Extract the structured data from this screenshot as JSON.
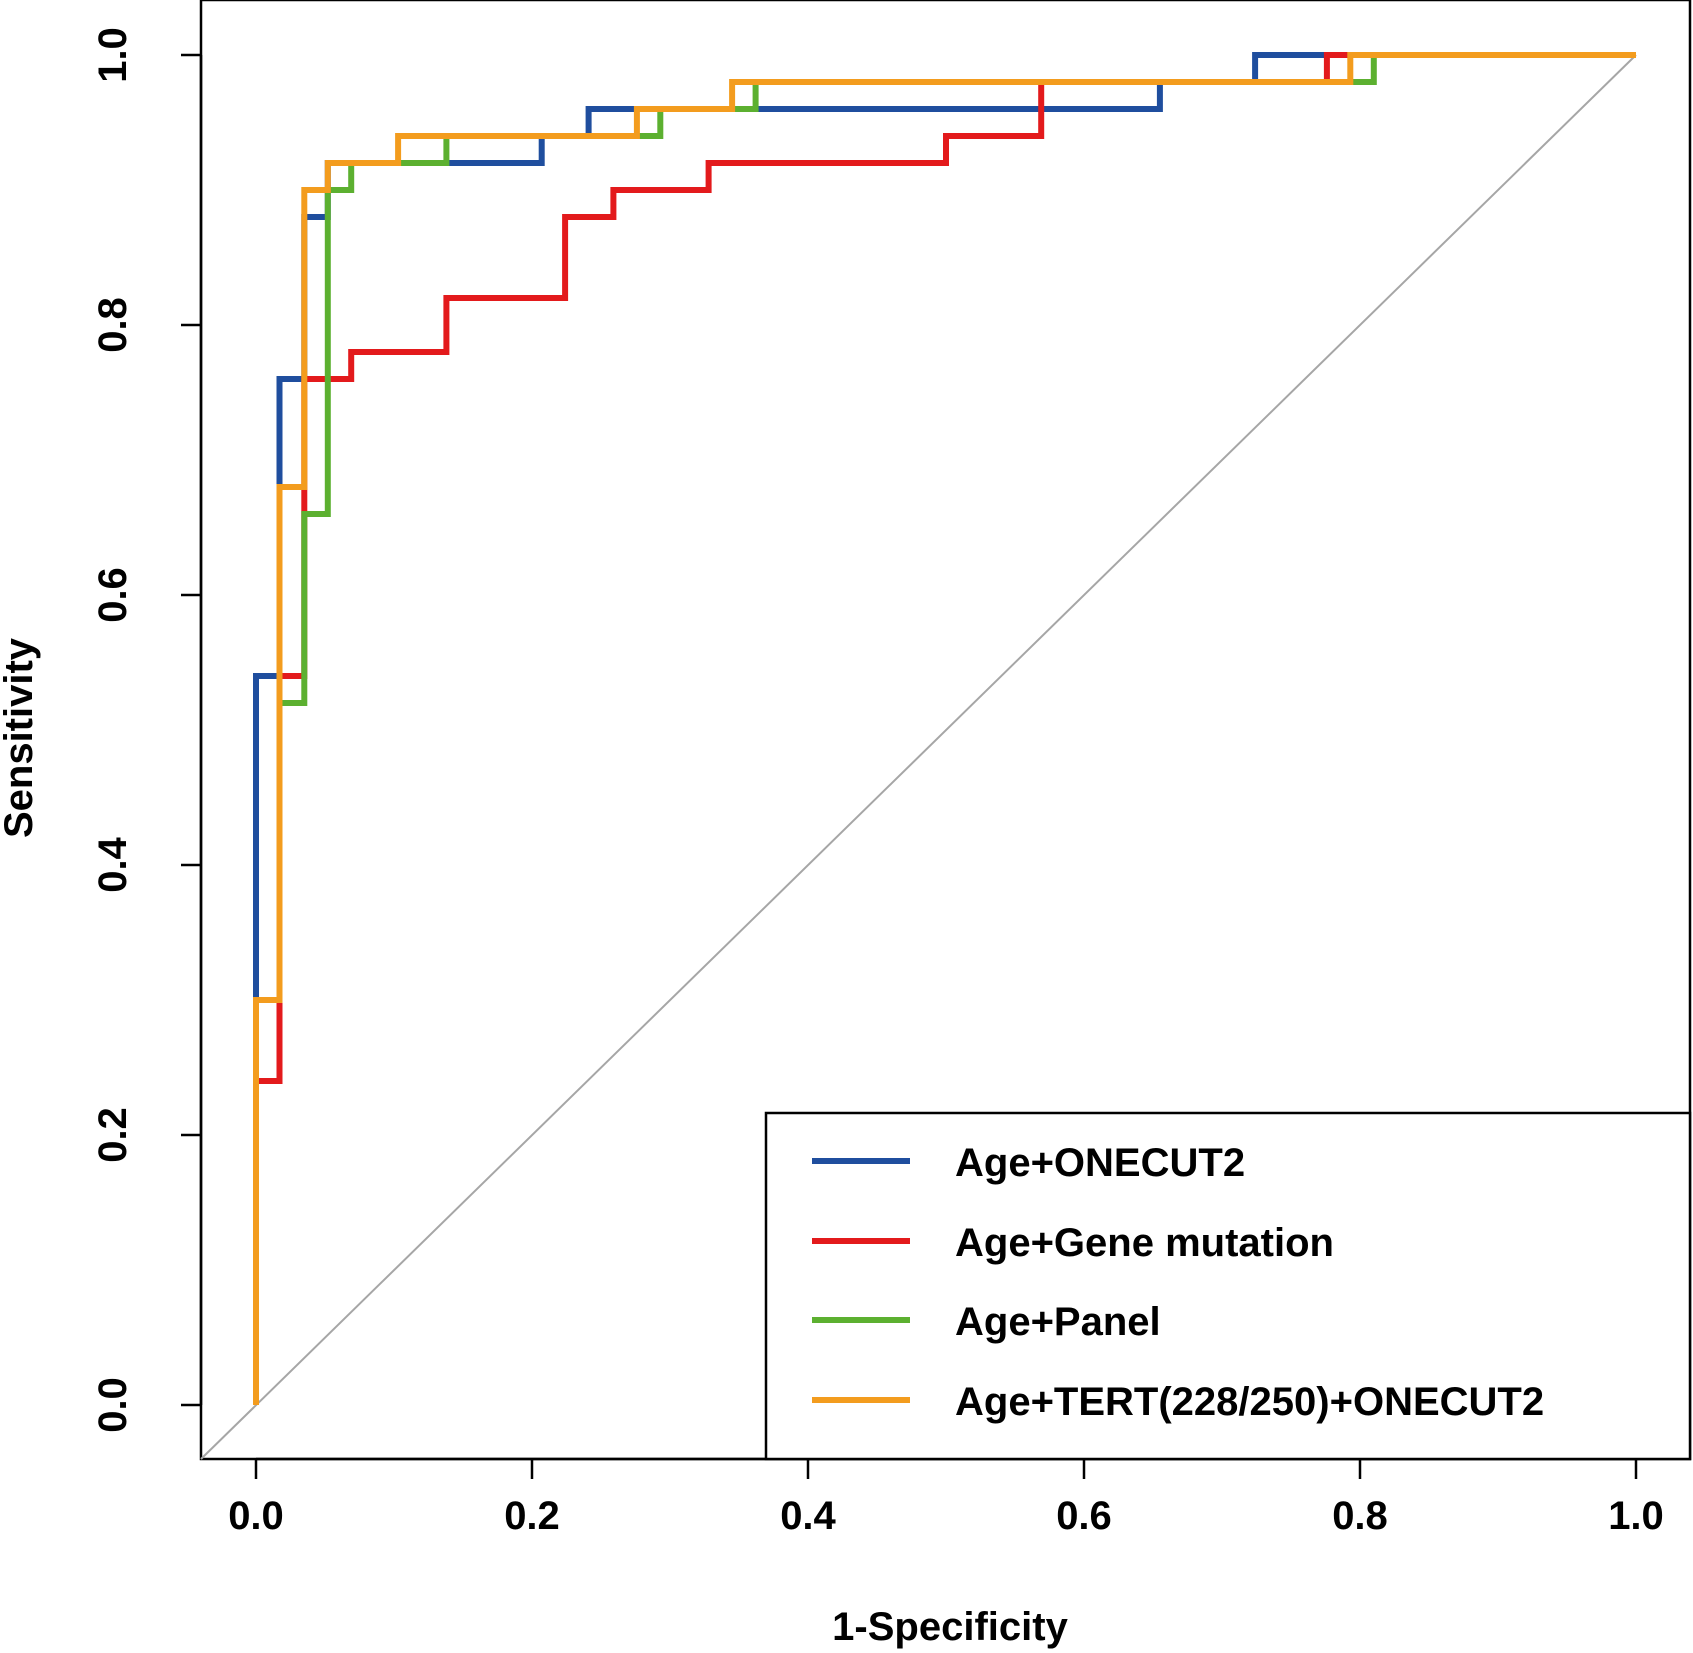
{
  "chart_data": {
    "type": "line",
    "title": "",
    "xlabel": "1-Specificity",
    "ylabel": "Sensitivity",
    "xlim": [
      0,
      1
    ],
    "ylim": [
      0,
      1
    ],
    "x_ticks": [
      "0.0",
      "0.2",
      "0.4",
      "0.6",
      "0.8",
      "1.0"
    ],
    "y_ticks": [
      "0.0",
      "0.2",
      "0.4",
      "0.6",
      "0.8",
      "1.0"
    ],
    "grid": false,
    "legend_position": "bottom-right",
    "reference_line": {
      "from": [
        0,
        0
      ],
      "to": [
        1,
        1
      ],
      "color": "#a6a6a6"
    },
    "series": [
      {
        "name": "Age+ONECUT2",
        "color": "#1f4e9e",
        "points": [
          [
            0,
            0
          ],
          [
            0,
            0.3
          ],
          [
            0,
            0.54
          ],
          [
            0.017,
            0.54
          ],
          [
            0.017,
            0.76
          ],
          [
            0.035,
            0.76
          ],
          [
            0.035,
            0.88
          ],
          [
            0.052,
            0.88
          ],
          [
            0.052,
            0.92
          ],
          [
            0.207,
            0.92
          ],
          [
            0.207,
            0.94
          ],
          [
            0.241,
            0.94
          ],
          [
            0.241,
            0.96
          ],
          [
            0.655,
            0.96
          ],
          [
            0.655,
            0.98
          ],
          [
            0.724,
            0.98
          ],
          [
            0.724,
            1.0
          ],
          [
            1.0,
            1.0
          ]
        ]
      },
      {
        "name": "Age+Gene mutation",
        "color": "#e31a1c",
        "points": [
          [
            0,
            0
          ],
          [
            0,
            0.24
          ],
          [
            0.017,
            0.24
          ],
          [
            0.017,
            0.3
          ],
          [
            0.017,
            0.54
          ],
          [
            0.035,
            0.54
          ],
          [
            0.035,
            0.66
          ],
          [
            0.035,
            0.76
          ],
          [
            0.069,
            0.76
          ],
          [
            0.069,
            0.78
          ],
          [
            0.138,
            0.78
          ],
          [
            0.138,
            0.82
          ],
          [
            0.224,
            0.82
          ],
          [
            0.224,
            0.88
          ],
          [
            0.259,
            0.88
          ],
          [
            0.259,
            0.9
          ],
          [
            0.328,
            0.9
          ],
          [
            0.328,
            0.92
          ],
          [
            0.5,
            0.92
          ],
          [
            0.5,
            0.94
          ],
          [
            0.569,
            0.94
          ],
          [
            0.569,
            0.98
          ],
          [
            0.776,
            0.98
          ],
          [
            0.776,
            1.0
          ],
          [
            1.0,
            1.0
          ]
        ]
      },
      {
        "name": "Age+Panel",
        "color": "#5cb030",
        "points": [
          [
            0,
            0
          ],
          [
            0,
            0.3
          ],
          [
            0.017,
            0.3
          ],
          [
            0.017,
            0.52
          ],
          [
            0.035,
            0.52
          ],
          [
            0.035,
            0.66
          ],
          [
            0.052,
            0.66
          ],
          [
            0.052,
            0.9
          ],
          [
            0.069,
            0.9
          ],
          [
            0.069,
            0.92
          ],
          [
            0.138,
            0.92
          ],
          [
            0.138,
            0.94
          ],
          [
            0.293,
            0.94
          ],
          [
            0.293,
            0.96
          ],
          [
            0.362,
            0.96
          ],
          [
            0.362,
            0.98
          ],
          [
            0.81,
            0.98
          ],
          [
            0.81,
            1.0
          ],
          [
            1.0,
            1.0
          ]
        ]
      },
      {
        "name": "Age+TERT(228/250)+ONECUT2",
        "color": "#f39c1e",
        "points": [
          [
            0,
            0
          ],
          [
            0,
            0.3
          ],
          [
            0.017,
            0.3
          ],
          [
            0.017,
            0.68
          ],
          [
            0.035,
            0.68
          ],
          [
            0.035,
            0.9
          ],
          [
            0.052,
            0.9
          ],
          [
            0.052,
            0.92
          ],
          [
            0.103,
            0.92
          ],
          [
            0.103,
            0.94
          ],
          [
            0.276,
            0.94
          ],
          [
            0.276,
            0.96
          ],
          [
            0.345,
            0.96
          ],
          [
            0.345,
            0.98
          ],
          [
            0.793,
            0.98
          ],
          [
            0.793,
            1.0
          ],
          [
            1.0,
            1.0
          ]
        ]
      }
    ]
  }
}
